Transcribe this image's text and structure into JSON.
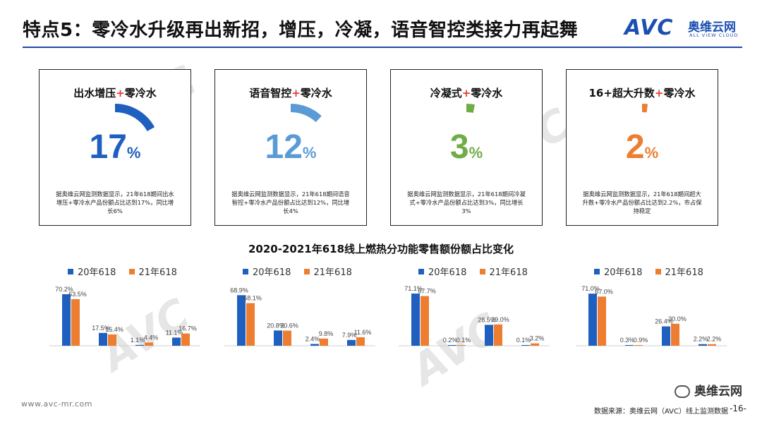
{
  "header": {
    "title": "特点5：零冷水升级再出新招，增压，冷凝，语音智控类接力再起舞",
    "logo_text": "AVC",
    "logo_cn": "奥维云网",
    "logo_en": "ALL VIEW CLOUD"
  },
  "colors": {
    "accent": "#1f4aa8",
    "series_2020": "#1f5fbf",
    "series_2021": "#ed7d31",
    "plus": "#e53935"
  },
  "cards": [
    {
      "title_a": "出水增压",
      "plus": "+",
      "title_b": "零冷水",
      "value": "17",
      "unit": "%",
      "share": 0.17,
      "color": "#1f5fbf",
      "desc": "据奥维云网监测数据显示，21年618期间出水增压+零冷水产品份额占比达到17%，同比增长6%"
    },
    {
      "title_a": "语音智控",
      "plus": "+",
      "title_b": "零冷水",
      "value": "12",
      "unit": "%",
      "share": 0.12,
      "color": "#5b9bd5",
      "desc": "据奥维云网监测数据显示，21年618期间语音智控+零冷水产品份额占比达到12%，同比增长4%"
    },
    {
      "title_a": "冷凝式",
      "plus": "+",
      "title_b": "零冷水",
      "value": "3",
      "unit": "%",
      "share": 0.03,
      "color": "#70ad47",
      "desc": "据奥维云网监测数据显示，21年618期间冷凝式+零冷水产品份额占比达到3%，同比增长3%"
    },
    {
      "title_a": "16+超大升数",
      "plus": "+",
      "title_b": "零冷水",
      "value": "2",
      "unit": "%",
      "share": 0.02,
      "color": "#ed7d31",
      "desc": "据奥维云网监测数据显示，21年618期间超大升数+零冷水产品份额占比达到2.2%，市占保持稳定"
    }
  ],
  "section_title": "2020-2021年618线上燃热分功能零售额份额占比变化",
  "legend": {
    "s2020": "20年618",
    "s2021": "21年618"
  },
  "chart_data": [
    {
      "type": "bar",
      "series": [
        {
          "name": "20年618",
          "values": [
            70.2,
            17.5,
            1.1,
            11.1
          ]
        },
        {
          "name": "21年618",
          "values": [
            63.5,
            15.4,
            4.4,
            16.7
          ]
        }
      ],
      "labels_2020": [
        "70.2%",
        "17.5%",
        "1.1%",
        "11.1%"
      ],
      "labels_2021": [
        "63.5%",
        "15.4%",
        "4.4%",
        "16.7%"
      ],
      "ylim": [
        0,
        75
      ]
    },
    {
      "type": "bar",
      "series": [
        {
          "name": "20年618",
          "values": [
            68.9,
            20.8,
            2.4,
            7.9
          ]
        },
        {
          "name": "21年618",
          "values": [
            58.1,
            20.6,
            9.8,
            11.6
          ]
        }
      ],
      "labels_2020": [
        "68.9%",
        "20.8%",
        "2.4%",
        "7.9%"
      ],
      "labels_2021": [
        "58.1%",
        "20.6%",
        "9.8%",
        "11.6%"
      ],
      "ylim": [
        0,
        75
      ]
    },
    {
      "type": "bar",
      "series": [
        {
          "name": "20年618",
          "values": [
            71.1,
            0.2,
            28.5,
            0.1
          ]
        },
        {
          "name": "21年618",
          "values": [
            67.7,
            0.1,
            29.0,
            3.2
          ]
        }
      ],
      "labels_2020": [
        "71.1%",
        "0.2%",
        "28.5%",
        "0.1%"
      ],
      "labels_2021": [
        "67.7%",
        "0.1%",
        "29.0%",
        "3.2%"
      ],
      "ylim": [
        0,
        75
      ]
    },
    {
      "type": "bar",
      "series": [
        {
          "name": "20年618",
          "values": [
            71.0,
            0.3,
            26.4,
            2.2
          ]
        },
        {
          "name": "21年618",
          "values": [
            67.0,
            0.9,
            30.0,
            2.2
          ]
        }
      ],
      "labels_2020": [
        "71.0%",
        "0.3%",
        "26.4%",
        "2.2%"
      ],
      "labels_2021": [
        "67.0%",
        "0.9%",
        "30.0%",
        "2.2%"
      ],
      "ylim": [
        0,
        75
      ]
    }
  ],
  "footer": {
    "website": "www.avc-mr.com",
    "source": "数据来源：奥维云网（AVC）线上监测数据",
    "page": "-16-",
    "wechat": "奥维云网"
  }
}
